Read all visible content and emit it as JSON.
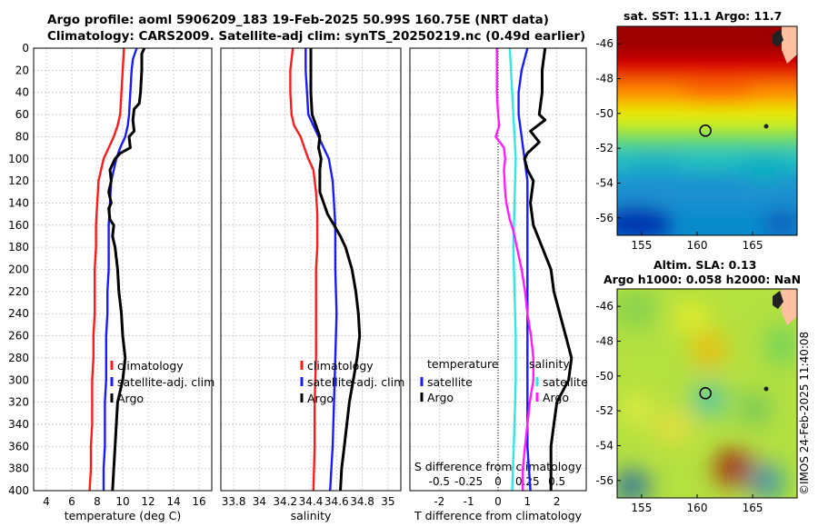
{
  "figure": {
    "title_line1": "Argo profile: aoml 5906209_183 19-Feb-2025 50.99S 160.75E (NRT data)",
    "title_line2": "Climatology: CARS2009. Satellite-adj clim: synTS_20250219.nc (0.49d earlier)",
    "timestamp": "©IMOS 24-Feb-2025 11:40:08"
  },
  "colors": {
    "climatology": "#ff1a1a",
    "satellite": "#1a1aff",
    "argo": "#000000",
    "s_satellite": "#33e6e6",
    "s_argo": "#ff1aff",
    "zero_line": "#000000"
  },
  "chart_data": [
    {
      "type": "line",
      "id": "temperature",
      "xlabel": "temperature (deg C)",
      "ylabel": "",
      "xlim": [
        3,
        17
      ],
      "ylim": [
        0,
        400
      ],
      "x_ticks": [
        4,
        6,
        8,
        10,
        12,
        14,
        16
      ],
      "y_ticks": [
        0,
        20,
        40,
        60,
        80,
        100,
        120,
        140,
        160,
        180,
        200,
        220,
        240,
        260,
        280,
        300,
        320,
        340,
        360,
        380,
        400
      ],
      "grid": true,
      "legend": [
        "climatology",
        "satellite-adj. clim",
        "Argo"
      ],
      "legend_location": "lower-center",
      "series": [
        {
          "name": "climatology",
          "color_key": "climatology",
          "points": [
            [
              10.1,
              0
            ],
            [
              10.0,
              20
            ],
            [
              9.9,
              40
            ],
            [
              9.8,
              60
            ],
            [
              9.6,
              70
            ],
            [
              9.3,
              80
            ],
            [
              8.9,
              90
            ],
            [
              8.5,
              100
            ],
            [
              8.3,
              110
            ],
            [
              8.1,
              120
            ],
            [
              8.0,
              140
            ],
            [
              7.9,
              160
            ],
            [
              7.9,
              180
            ],
            [
              7.8,
              200
            ],
            [
              7.8,
              220
            ],
            [
              7.8,
              240
            ],
            [
              7.7,
              260
            ],
            [
              7.7,
              280
            ],
            [
              7.6,
              300
            ],
            [
              7.6,
              320
            ],
            [
              7.6,
              340
            ],
            [
              7.5,
              360
            ],
            [
              7.5,
              380
            ],
            [
              7.4,
              400
            ]
          ]
        },
        {
          "name": "satellite-adj. clim",
          "color_key": "satellite",
          "points": [
            [
              11.1,
              0
            ],
            [
              10.8,
              10
            ],
            [
              10.7,
              20
            ],
            [
              10.6,
              40
            ],
            [
              10.5,
              60
            ],
            [
              10.4,
              70
            ],
            [
              10.2,
              80
            ],
            [
              9.8,
              90
            ],
            [
              9.5,
              100
            ],
            [
              9.3,
              110
            ],
            [
              9.1,
              120
            ],
            [
              9.0,
              140
            ],
            [
              8.9,
              160
            ],
            [
              8.9,
              180
            ],
            [
              8.9,
              200
            ],
            [
              8.8,
              220
            ],
            [
              8.8,
              240
            ],
            [
              8.7,
              260
            ],
            [
              8.7,
              280
            ],
            [
              8.7,
              300
            ],
            [
              8.6,
              320
            ],
            [
              8.6,
              340
            ],
            [
              8.6,
              360
            ],
            [
              8.5,
              380
            ],
            [
              8.5,
              400
            ]
          ]
        },
        {
          "name": "Argo",
          "color_key": "argo",
          "points": [
            [
              11.7,
              0
            ],
            [
              11.5,
              5
            ],
            [
              11.5,
              20
            ],
            [
              11.4,
              40
            ],
            [
              11.3,
              50
            ],
            [
              10.9,
              55
            ],
            [
              10.8,
              65
            ],
            [
              10.9,
              75
            ],
            [
              10.5,
              80
            ],
            [
              10.6,
              90
            ],
            [
              9.8,
              95
            ],
            [
              9.4,
              100
            ],
            [
              9.0,
              110
            ],
            [
              9.1,
              120
            ],
            [
              8.9,
              130
            ],
            [
              9.1,
              140
            ],
            [
              8.9,
              145
            ],
            [
              9.0,
              155
            ],
            [
              9.3,
              160
            ],
            [
              9.2,
              170
            ],
            [
              9.4,
              180
            ],
            [
              9.6,
              200
            ],
            [
              9.7,
              220
            ],
            [
              9.9,
              240
            ],
            [
              10.0,
              260
            ],
            [
              10.2,
              280
            ],
            [
              10.0,
              300
            ],
            [
              9.6,
              320
            ],
            [
              9.5,
              340
            ],
            [
              9.4,
              360
            ],
            [
              9.3,
              380
            ],
            [
              9.2,
              400
            ]
          ]
        }
      ]
    },
    {
      "type": "line",
      "id": "salinity",
      "xlabel": "salinity",
      "ylabel": "",
      "xlim": [
        33.7,
        35.1
      ],
      "ylim": [
        0,
        400
      ],
      "x_ticks": [
        33.8,
        34,
        34.2,
        34.4,
        34.6,
        34.8,
        35
      ],
      "x_tick_labels": [
        "33.8",
        "34",
        "34.2",
        "34.4",
        "34.6",
        "34.8",
        "35"
      ],
      "grid": true,
      "legend": [
        "climatology",
        "satellite-adj. clim",
        "Argo"
      ],
      "legend_location": "lower-center",
      "series": [
        {
          "name": "climatology",
          "color_key": "climatology",
          "points": [
            [
              34.26,
              0
            ],
            [
              34.24,
              20
            ],
            [
              34.24,
              40
            ],
            [
              34.25,
              60
            ],
            [
              34.27,
              70
            ],
            [
              34.32,
              80
            ],
            [
              34.35,
              90
            ],
            [
              34.38,
              100
            ],
            [
              34.42,
              110
            ],
            [
              34.44,
              130
            ],
            [
              34.45,
              150
            ],
            [
              34.45,
              180
            ],
            [
              34.44,
              200
            ],
            [
              34.44,
              240
            ],
            [
              34.44,
              280
            ],
            [
              34.43,
              320
            ],
            [
              34.43,
              360
            ],
            [
              34.42,
              400
            ]
          ]
        },
        {
          "name": "satellite-adj. clim",
          "color_key": "satellite",
          "points": [
            [
              34.36,
              0
            ],
            [
              34.36,
              20
            ],
            [
              34.37,
              40
            ],
            [
              34.38,
              60
            ],
            [
              34.42,
              70
            ],
            [
              34.46,
              80
            ],
            [
              34.5,
              90
            ],
            [
              34.54,
              100
            ],
            [
              34.57,
              120
            ],
            [
              34.58,
              140
            ],
            [
              34.59,
              160
            ],
            [
              34.59,
              200
            ],
            [
              34.6,
              240
            ],
            [
              34.59,
              280
            ],
            [
              34.58,
              320
            ],
            [
              34.57,
              360
            ],
            [
              34.55,
              400
            ]
          ]
        },
        {
          "name": "Argo",
          "color_key": "argo",
          "points": [
            [
              34.4,
              0
            ],
            [
              34.4,
              20
            ],
            [
              34.4,
              40
            ],
            [
              34.41,
              60
            ],
            [
              34.44,
              70
            ],
            [
              34.47,
              80
            ],
            [
              34.46,
              90
            ],
            [
              34.48,
              100
            ],
            [
              34.47,
              110
            ],
            [
              34.47,
              130
            ],
            [
              34.5,
              140
            ],
            [
              34.53,
              150
            ],
            [
              34.58,
              160
            ],
            [
              34.63,
              170
            ],
            [
              34.67,
              180
            ],
            [
              34.72,
              200
            ],
            [
              34.75,
              220
            ],
            [
              34.77,
              240
            ],
            [
              34.78,
              260
            ],
            [
              34.76,
              280
            ],
            [
              34.73,
              300
            ],
            [
              34.7,
              320
            ],
            [
              34.68,
              340
            ],
            [
              34.66,
              360
            ],
            [
              34.64,
              380
            ],
            [
              34.63,
              400
            ]
          ]
        }
      ]
    },
    {
      "type": "line",
      "id": "differences",
      "xlabel": "T difference from climatology",
      "xlabel_top": "S difference from climatology",
      "xlim": [
        -3,
        3
      ],
      "ylim": [
        0,
        400
      ],
      "x_ticks": [
        -2,
        -1,
        0,
        1,
        2
      ],
      "x_tick_labels": [
        "-2",
        "-1",
        "0",
        "1",
        "2"
      ],
      "top_ticks": [
        -0.5,
        -0.25,
        0,
        0.25,
        0.5
      ],
      "top_tick_labels": [
        "-0.5",
        "-0.25",
        "0",
        "0.25",
        "0.5"
      ],
      "top_xlim": [
        -0.75,
        0.75
      ],
      "grid": true,
      "legend_temperature_title": "temperature",
      "legend_salinity_title": "salinity",
      "legend_temperature": [
        "satellite",
        "Argo"
      ],
      "legend_salinity": [
        "satellite",
        "Argo"
      ],
      "series": [
        {
          "name": "T satellite",
          "color_key": "satellite",
          "axis": "T",
          "points": [
            [
              1.0,
              0
            ],
            [
              0.8,
              20
            ],
            [
              0.7,
              40
            ],
            [
              0.7,
              60
            ],
            [
              0.8,
              80
            ],
            [
              0.9,
              100
            ],
            [
              1.0,
              120
            ],
            [
              1.0,
              160
            ],
            [
              1.0,
              200
            ],
            [
              1.0,
              240
            ],
            [
              1.0,
              280
            ],
            [
              1.0,
              320
            ],
            [
              1.0,
              360
            ],
            [
              1.1,
              400
            ]
          ]
        },
        {
          "name": "T Argo",
          "color_key": "argo",
          "axis": "T",
          "points": [
            [
              1.6,
              0
            ],
            [
              1.5,
              20
            ],
            [
              1.5,
              40
            ],
            [
              1.4,
              60
            ],
            [
              1.6,
              65
            ],
            [
              1.1,
              75
            ],
            [
              1.4,
              85
            ],
            [
              1.0,
              95
            ],
            [
              0.9,
              100
            ],
            [
              1.0,
              110
            ],
            [
              1.2,
              120
            ],
            [
              1.1,
              140
            ],
            [
              1.2,
              160
            ],
            [
              1.5,
              180
            ],
            [
              1.8,
              200
            ],
            [
              1.9,
              220
            ],
            [
              2.1,
              240
            ],
            [
              2.3,
              260
            ],
            [
              2.5,
              280
            ],
            [
              2.4,
              300
            ],
            [
              2.0,
              320
            ],
            [
              1.9,
              340
            ],
            [
              1.8,
              360
            ],
            [
              1.8,
              380
            ],
            [
              1.8,
              400
            ]
          ]
        },
        {
          "name": "S satellite",
          "color_key": "s_satellite",
          "axis": "S",
          "points": [
            [
              0.1,
              0
            ],
            [
              0.11,
              20
            ],
            [
              0.12,
              40
            ],
            [
              0.13,
              60
            ],
            [
              0.14,
              80
            ],
            [
              0.15,
              100
            ],
            [
              0.14,
              140
            ],
            [
              0.13,
              180
            ],
            [
              0.14,
              220
            ],
            [
              0.15,
              260
            ],
            [
              0.15,
              300
            ],
            [
              0.14,
              340
            ],
            [
              0.13,
              370
            ],
            [
              0.12,
              400
            ]
          ]
        },
        {
          "name": "S Argo",
          "color_key": "s_argo",
          "axis": "S",
          "points": [
            [
              -0.01,
              0
            ],
            [
              -0.01,
              20
            ],
            [
              -0.01,
              40
            ],
            [
              0.0,
              60
            ],
            [
              0.01,
              70
            ],
            [
              -0.02,
              80
            ],
            [
              0.05,
              90
            ],
            [
              0.06,
              100
            ],
            [
              0.05,
              110
            ],
            [
              0.06,
              130
            ],
            [
              0.07,
              140
            ],
            [
              0.1,
              155
            ],
            [
              0.13,
              165
            ],
            [
              0.16,
              180
            ],
            [
              0.2,
              200
            ],
            [
              0.23,
              220
            ],
            [
              0.25,
              240
            ],
            [
              0.28,
              260
            ],
            [
              0.3,
              280
            ],
            [
              0.3,
              300
            ],
            [
              0.27,
              320
            ],
            [
              0.25,
              340
            ],
            [
              0.23,
              360
            ],
            [
              0.21,
              380
            ],
            [
              0.21,
              400
            ]
          ]
        }
      ]
    },
    {
      "type": "heatmap",
      "id": "sst-map",
      "title": "sat. SST: 11.1 Argo: 11.7",
      "x_ticks": [
        155,
        160,
        165
      ],
      "y_ticks": [
        -46,
        -48,
        -50,
        -52,
        -54,
        -56
      ],
      "xlim": [
        152.8,
        169
      ],
      "ylim": [
        -57,
        -45
      ],
      "marker": {
        "lon": 160.75,
        "lat": -50.99
      }
    },
    {
      "type": "heatmap",
      "id": "sla-map",
      "title_line1": "Altim. SLA: 0.13",
      "title_line2": "Argo h1000: 0.058 h2000: NaN",
      "x_ticks": [
        155,
        160,
        165
      ],
      "y_ticks": [
        -46,
        -48,
        -50,
        -52,
        -54,
        -56
      ],
      "xlim": [
        152.8,
        169
      ],
      "ylim": [
        -57,
        -45
      ],
      "marker": {
        "lon": 160.75,
        "lat": -50.99
      }
    }
  ]
}
